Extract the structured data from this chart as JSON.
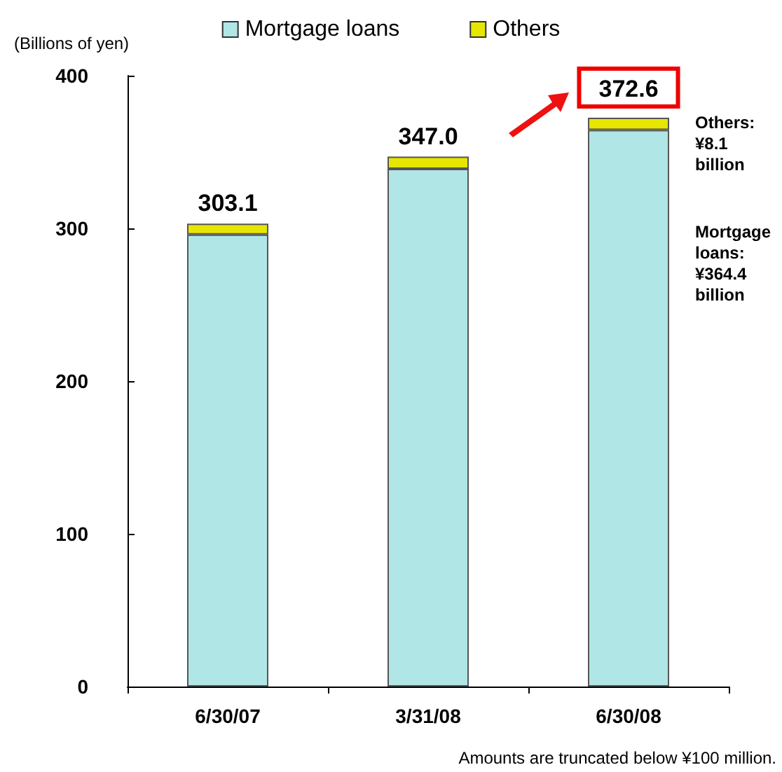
{
  "chart_data": {
    "type": "bar",
    "stacked": true,
    "ylabel": "(Billions of yen)",
    "categories": [
      "6/30/07",
      "3/31/08",
      "6/30/08"
    ],
    "series": [
      {
        "name": "Mortgage loans",
        "color": "#b0e6e6",
        "values": [
          296.0,
          339.0,
          364.4
        ]
      },
      {
        "name": "Others",
        "color": "#e6e600",
        "values": [
          7.1,
          8.0,
          8.1
        ]
      }
    ],
    "totals": [
      "303.1",
      "347.0",
      "372.6"
    ],
    "ylim": [
      0,
      400
    ],
    "yticks": [
      0,
      100,
      200,
      300,
      400
    ],
    "grid": false,
    "legend": "top",
    "annotations": [
      "Others:\n¥8.1\nbillion",
      "Mortgage\nloans:\n¥364.4\nbillion",
      "Amounts are truncated below ¥100 million."
    ]
  }
}
